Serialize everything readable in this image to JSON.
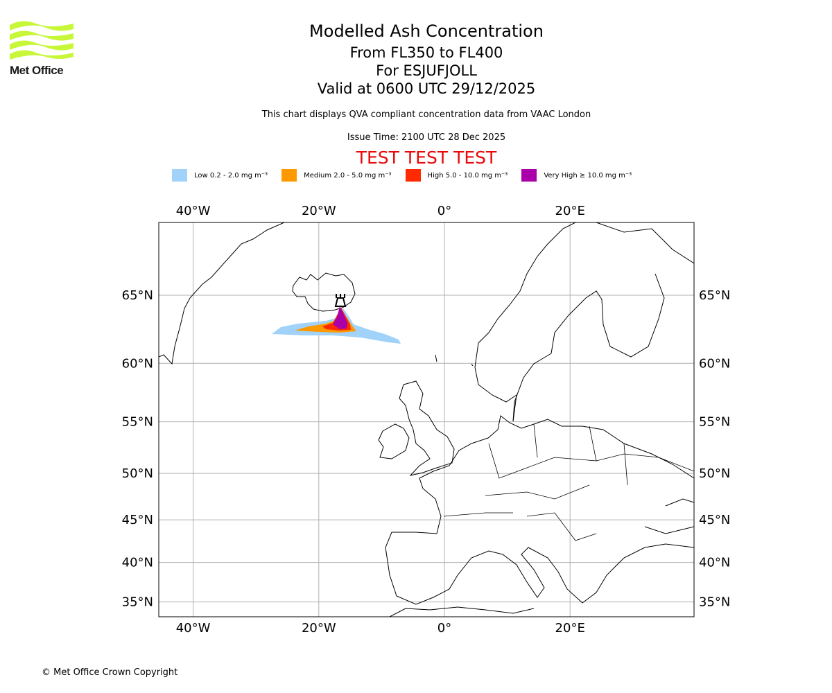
{
  "header": {
    "title": "Modelled Ash Concentration",
    "levels": "From FL350 to FL400",
    "volcano": "For ESJUFJOLL",
    "valid": "Valid at 0600 UTC 29/12/2025",
    "description": "This chart displays QVA compliant concentration data from VAAC London",
    "issue_time": "Issue Time: 2100 UTC 28 Dec 2025",
    "test_banner": "TEST TEST TEST"
  },
  "logo": {
    "text": "Met Office"
  },
  "legend": [
    {
      "label": "Low 0.2 - 2.0 mg m⁻³",
      "color": "#a0d2fa"
    },
    {
      "label": "Medium 2.0 - 5.0 mg m⁻³",
      "color": "#ff9900"
    },
    {
      "label": "High 5.0 - 10.0 mg m⁻³",
      "color": "#ff2a00"
    },
    {
      "label": "Very High ≥ 10.0 mg m⁻³",
      "color": "#aa00aa"
    }
  ],
  "map": {
    "lon_ticks": [
      {
        "value": -40,
        "label": "40°W"
      },
      {
        "value": -20,
        "label": "20°W"
      },
      {
        "value": 0,
        "label": "0°"
      },
      {
        "value": 20,
        "label": "20°E"
      }
    ],
    "lat_ticks": [
      {
        "value": 65,
        "label": "65°N"
      },
      {
        "value": 60,
        "label": "60°N"
      },
      {
        "value": 55,
        "label": "55°N"
      },
      {
        "value": 50,
        "label": "50°N"
      },
      {
        "value": 45,
        "label": "45°N"
      },
      {
        "value": 40,
        "label": "40°N"
      },
      {
        "value": 35,
        "label": "35°N"
      }
    ],
    "volcano_marker": "volcano"
  },
  "footer": {
    "copyright": "© Met Office Crown Copyright"
  }
}
